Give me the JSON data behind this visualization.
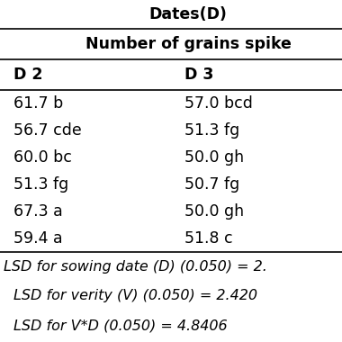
{
  "title": "Dates(D)",
  "subtitle": "Number of grains spike",
  "col_headers": [
    "D 2",
    "D 3"
  ],
  "rows": [
    [
      "61.7 b",
      "57.0 bcd"
    ],
    [
      "56.7 cde",
      "51.3 fg"
    ],
    [
      "60.0 bc",
      "50.0 gh"
    ],
    [
      "51.3 fg",
      "50.7 fg"
    ],
    [
      "67.3 a",
      "50.0 gh"
    ],
    [
      "59.4 a",
      "51.8 c"
    ]
  ],
  "footer_lines": [
    "LSD for sowing date (D) (0.050) = 2.",
    "LSD for verity (V) (0.050) = 2.420",
    "LSD for V*D (0.050) = 4.8406"
  ],
  "bg_color": "#ffffff",
  "text_color": "#000000",
  "title_fontsize": 12.5,
  "header_fontsize": 12.5,
  "cell_fontsize": 12.5,
  "footer_fontsize": 11.5
}
